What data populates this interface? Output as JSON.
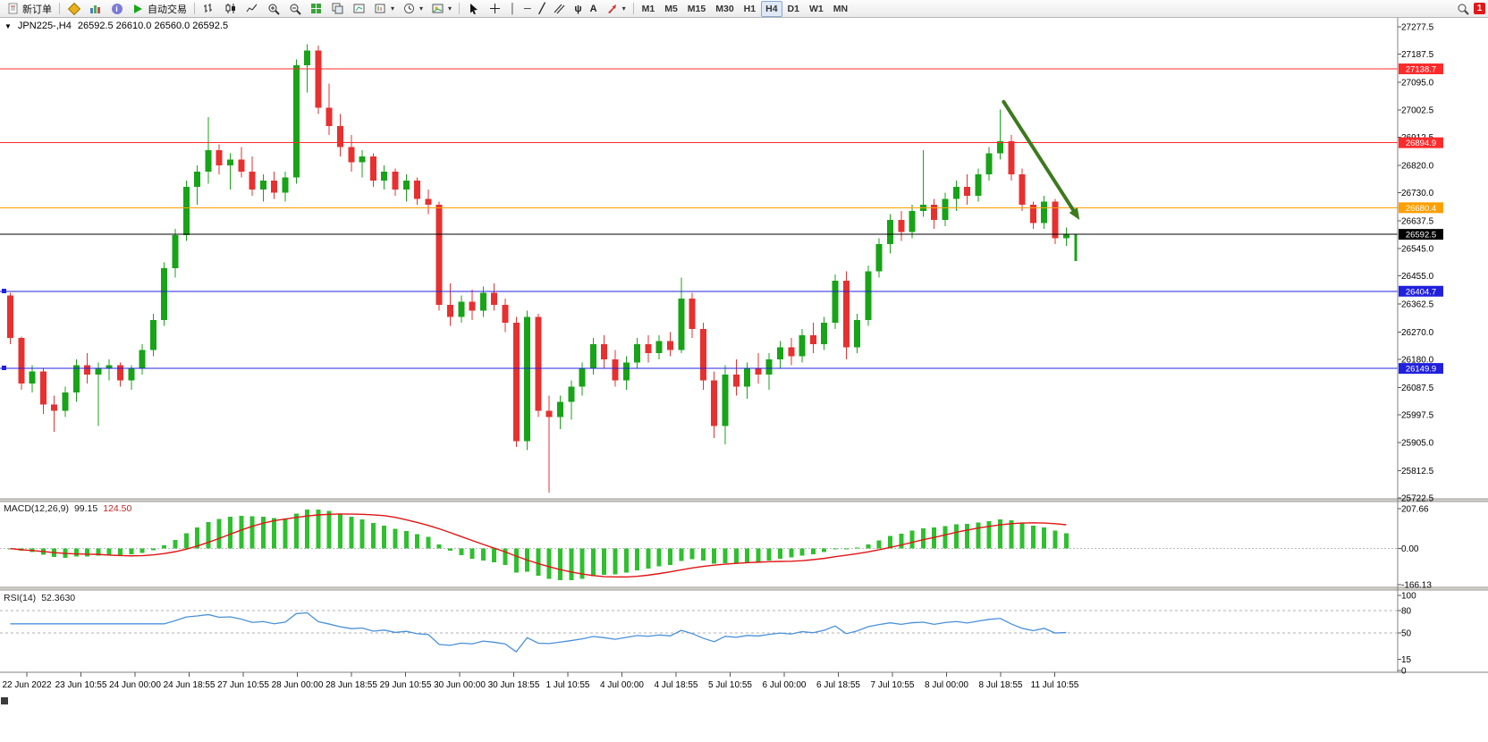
{
  "colors": {
    "bull": "#18a318",
    "bear": "#e73030",
    "macd_hist": "#2fbf2f",
    "macd_signal": "#e01515",
    "rsi_line": "#4a90d9",
    "arrow": "#3c7a1d",
    "level_red": "#ff2a2a",
    "level_orange": "#ff9f00",
    "level_blue": "#2020dd",
    "level_black": "#000000"
  },
  "icons": {
    "collapse": "▼",
    "dropdown": "▾",
    "fibo_glyph": "ψ",
    "text_glyph": "A",
    "vline_glyph": "│",
    "hline_glyph": "─",
    "trend_glyph": "╱",
    "cross_glyph": "＋"
  },
  "toolbar": {
    "new_order": "新订单",
    "auto_trading": "自动交易",
    "timeframes": [
      "M1",
      "M5",
      "M15",
      "M30",
      "H1",
      "H4",
      "D1",
      "W1",
      "MN"
    ],
    "active_timeframe": "H4",
    "notification_count": "1"
  },
  "chart_header": {
    "symbol": "JPN225-,H4",
    "ohlc": "26592.5 26610.0 26560.0 26592.5"
  },
  "levels": [
    {
      "price": 27138.7,
      "label": "27138.7",
      "color_key": "level_red"
    },
    {
      "price": 26894.9,
      "label": "26894.9",
      "color_key": "level_red"
    },
    {
      "price": 26680.4,
      "label": "26680.4",
      "color_key": "level_orange"
    },
    {
      "price": 26592.5,
      "label": "26592.5",
      "color_key": "level_black"
    },
    {
      "price": 26404.7,
      "label": "26404.7",
      "color_key": "level_blue"
    },
    {
      "price": 26149.9,
      "label": "26149.9",
      "color_key": "level_blue"
    }
  ],
  "price_axis": [
    "27277.5",
    "27187.5",
    "27095.0",
    "27002.5",
    "26912.5",
    "26820.0",
    "26730.0",
    "26637.5",
    "26545.0",
    "26455.0",
    "26362.5",
    "26270.0",
    "26180.0",
    "26087.5",
    "25997.5",
    "25905.0",
    "25812.5",
    "25722.5"
  ],
  "time_axis": [
    "22 Jun 2022",
    "23 Jun 10:55",
    "24 Jun 00:00",
    "24 Jun 18:55",
    "27 Jun 10:55",
    "28 Jun 00:00",
    "28 Jun 18:55",
    "29 Jun 10:55",
    "30 Jun 00:00",
    "30 Jun 18:55",
    "1 Jul 10:55",
    "4 Jul 00:00",
    "4 Jul 18:55",
    "5 Jul 10:55",
    "6 Jul 00:00",
    "6 Jul 18:55",
    "7 Jul 10:55",
    "8 Jul 00:00",
    "8 Jul 18:55",
    "11 Jul 10:55"
  ],
  "macd": {
    "label": "MACD(12,26,9)",
    "value_main": "99.15",
    "value_signal": "124.50",
    "axis": [
      "207.66",
      "0.00",
      "-166.13"
    ],
    "fast": 12,
    "slow": 26,
    "signal": 9
  },
  "rsi": {
    "label": "RSI(14)",
    "value": "52.3630",
    "axis": [
      "100",
      "80",
      "50",
      "15",
      "0"
    ],
    "levels": [
      80,
      50
    ],
    "period": 14
  },
  "chart_data": {
    "type": "candlestick",
    "symbol": "JPN225-",
    "timeframe": "H4",
    "price_range": [
      25722.5,
      27277.5
    ],
    "candles": [
      [
        26390,
        26400,
        26230,
        26250
      ],
      [
        26250,
        26255,
        26080,
        26100
      ],
      [
        26100,
        26160,
        26070,
        26140
      ],
      [
        26140,
        26150,
        26000,
        26030
      ],
      [
        26030,
        26060,
        25940,
        26010
      ],
      [
        26010,
        26090,
        25990,
        26070
      ],
      [
        26070,
        26180,
        26040,
        26160
      ],
      [
        26160,
        26200,
        26100,
        26130
      ],
      [
        26130,
        26170,
        25960,
        26150
      ],
      [
        26150,
        26180,
        26110,
        26160
      ],
      [
        26160,
        26170,
        26090,
        26110
      ],
      [
        26110,
        26160,
        26080,
        26150
      ],
      [
        26150,
        26230,
        26130,
        26210
      ],
      [
        26210,
        26330,
        26190,
        26310
      ],
      [
        26310,
        26500,
        26290,
        26480
      ],
      [
        26480,
        26610,
        26450,
        26590
      ],
      [
        26590,
        26770,
        26570,
        26750
      ],
      [
        26750,
        26820,
        26690,
        26800
      ],
      [
        26800,
        26980,
        26760,
        26870
      ],
      [
        26870,
        26890,
        26790,
        26820
      ],
      [
        26820,
        26860,
        26740,
        26840
      ],
      [
        26840,
        26880,
        26780,
        26800
      ],
      [
        26800,
        26850,
        26720,
        26740
      ],
      [
        26740,
        26790,
        26700,
        26770
      ],
      [
        26770,
        26800,
        26710,
        26730
      ],
      [
        26730,
        26800,
        26700,
        26780
      ],
      [
        26780,
        27170,
        26760,
        27150
      ],
      [
        27150,
        27220,
        27060,
        27200
      ],
      [
        27200,
        27215,
        26990,
        27010
      ],
      [
        27010,
        27090,
        26920,
        26950
      ],
      [
        26950,
        26990,
        26850,
        26880
      ],
      [
        26880,
        26920,
        26800,
        26830
      ],
      [
        26830,
        26870,
        26780,
        26850
      ],
      [
        26850,
        26860,
        26750,
        26770
      ],
      [
        26770,
        26820,
        26740,
        26800
      ],
      [
        26800,
        26810,
        26720,
        26740
      ],
      [
        26740,
        26790,
        26700,
        26770
      ],
      [
        26770,
        26780,
        26690,
        26710
      ],
      [
        26710,
        26740,
        26660,
        26690
      ],
      [
        26690,
        26700,
        26340,
        26360
      ],
      [
        26360,
        26430,
        26290,
        26320
      ],
      [
        26320,
        26390,
        26300,
        26370
      ],
      [
        26370,
        26410,
        26310,
        26340
      ],
      [
        26340,
        26420,
        26320,
        26400
      ],
      [
        26400,
        26430,
        26340,
        26360
      ],
      [
        26360,
        26380,
        26270,
        26300
      ],
      [
        26300,
        26320,
        25890,
        25910
      ],
      [
        25910,
        26340,
        25880,
        26320
      ],
      [
        26320,
        26330,
        25990,
        26010
      ],
      [
        26010,
        26060,
        25740,
        25990
      ],
      [
        25990,
        26060,
        25950,
        26040
      ],
      [
        26040,
        26110,
        25980,
        26090
      ],
      [
        26090,
        26170,
        26060,
        26150
      ],
      [
        26150,
        26250,
        26130,
        26230
      ],
      [
        26230,
        26260,
        26150,
        26180
      ],
      [
        26180,
        26210,
        26090,
        26110
      ],
      [
        26110,
        26190,
        26080,
        26170
      ],
      [
        26170,
        26250,
        26150,
        26230
      ],
      [
        26230,
        26260,
        26170,
        26200
      ],
      [
        26200,
        26260,
        26180,
        26240
      ],
      [
        26240,
        26270,
        26190,
        26210
      ],
      [
        26210,
        26450,
        26200,
        26380
      ],
      [
        26380,
        26400,
        26250,
        26280
      ],
      [
        26280,
        26300,
        26080,
        26110
      ],
      [
        26110,
        26140,
        25920,
        25960
      ],
      [
        25960,
        26160,
        25900,
        26130
      ],
      [
        26130,
        26180,
        26060,
        26090
      ],
      [
        26090,
        26170,
        26050,
        26150
      ],
      [
        26150,
        26200,
        26100,
        26130
      ],
      [
        26130,
        26200,
        26080,
        26180
      ],
      [
        26180,
        26240,
        26150,
        26220
      ],
      [
        26220,
        26250,
        26160,
        26190
      ],
      [
        26190,
        26280,
        26170,
        26260
      ],
      [
        26260,
        26300,
        26200,
        26230
      ],
      [
        26230,
        26320,
        26210,
        26300
      ],
      [
        26300,
        26460,
        26280,
        26440
      ],
      [
        26440,
        26470,
        26180,
        26220
      ],
      [
        26220,
        26330,
        26200,
        26310
      ],
      [
        26310,
        26490,
        26290,
        26470
      ],
      [
        26470,
        26580,
        26450,
        26560
      ],
      [
        26560,
        26660,
        26530,
        26640
      ],
      [
        26640,
        26670,
        26570,
        26600
      ],
      [
        26600,
        26690,
        26580,
        26670
      ],
      [
        26670,
        26870,
        26650,
        26690
      ],
      [
        26690,
        26710,
        26610,
        26640
      ],
      [
        26640,
        26730,
        26620,
        26710
      ],
      [
        26710,
        26770,
        26670,
        26750
      ],
      [
        26750,
        26790,
        26690,
        26720
      ],
      [
        26720,
        26810,
        26700,
        26790
      ],
      [
        26790,
        26880,
        26770,
        26860
      ],
      [
        26860,
        27005,
        26840,
        26900
      ],
      [
        26900,
        26920,
        26770,
        26790
      ],
      [
        26790,
        26810,
        26670,
        26690
      ],
      [
        26690,
        26700,
        26610,
        26630
      ],
      [
        26630,
        26720,
        26610,
        26700
      ],
      [
        26700,
        26710,
        26560,
        26580
      ],
      [
        26580,
        26615,
        26555,
        26592.5
      ]
    ],
    "forming_bar": [
      26592.5,
      26592.5,
      26505,
      26520
    ],
    "annotation_arrow": {
      "from_index": 90.6,
      "from_price": 27030,
      "to_index": 97.5,
      "to_price": 26640
    }
  }
}
